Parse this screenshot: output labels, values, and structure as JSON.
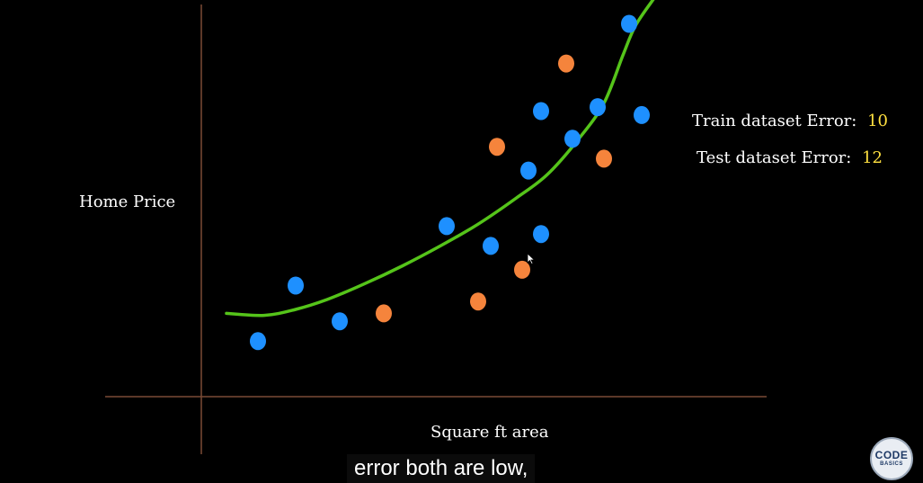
{
  "chart_data": {
    "type": "scatter",
    "title": "",
    "xlabel": "Square ft area",
    "ylabel": "Home Price",
    "xlim": [
      0,
      100
    ],
    "ylim": [
      0,
      100
    ],
    "grid": false,
    "series": [
      {
        "name": "",
        "color": "#1e90ff",
        "points": [
          [
            9,
            14
          ],
          [
            15,
            28
          ],
          [
            22,
            19
          ],
          [
            39,
            43
          ],
          [
            46,
            38
          ],
          [
            52,
            57
          ],
          [
            54,
            41
          ],
          [
            54,
            72
          ],
          [
            59,
            65
          ],
          [
            63,
            73
          ],
          [
            68,
            94
          ],
          [
            70,
            71
          ]
        ]
      },
      {
        "name": "",
        "color": "#f5843c",
        "points": [
          [
            29,
            21
          ],
          [
            44,
            24
          ],
          [
            47,
            63
          ],
          [
            51,
            32
          ],
          [
            58,
            84
          ],
          [
            64,
            60
          ]
        ]
      }
    ],
    "fit_curve": {
      "color": "#55c41a",
      "points": [
        [
          4,
          21
        ],
        [
          10,
          20.5
        ],
        [
          15,
          22
        ],
        [
          20,
          24.5
        ],
        [
          26,
          28.5
        ],
        [
          32,
          33
        ],
        [
          38,
          38
        ],
        [
          44,
          43.5
        ],
        [
          50,
          50
        ],
        [
          55,
          56
        ],
        [
          60,
          65
        ],
        [
          64,
          74
        ],
        [
          67,
          86
        ],
        [
          69,
          93.5
        ],
        [
          72,
          100.5
        ]
      ]
    }
  },
  "annotations": {
    "train_label": "Train dataset Error:",
    "train_value": "10",
    "test_label": "Test dataset Error:",
    "test_value": "12",
    "value_color": "#ffe040"
  },
  "subtitle": "error both are low,",
  "logo": {
    "line1": "CODE",
    "line2": "BASICS"
  }
}
